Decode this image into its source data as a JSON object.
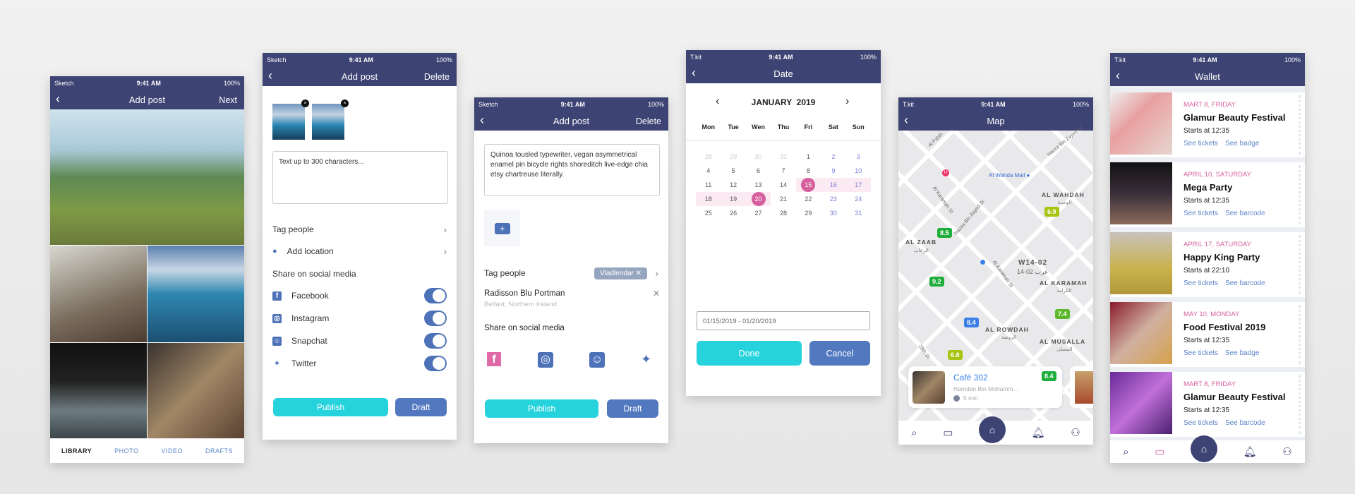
{
  "status": {
    "sketch": "Sketch",
    "tkit": "T.kit",
    "time": "9:41 AM",
    "battery": "100%"
  },
  "screen1": {
    "title": "Add post",
    "next": "Next",
    "tabs": [
      "LIBRARY",
      "PHOTO",
      "VIDEO",
      "DRAFTS"
    ],
    "active_tab": "LIBRARY"
  },
  "screen2": {
    "title": "Add post",
    "delete": "Delete",
    "placeholder": "Text up to 300 characters...",
    "tag_people": "Tag people",
    "add_location": "Add location",
    "share": "Share on social media",
    "social": [
      {
        "name": "Facebook",
        "icon": "facebook-icon",
        "on": true
      },
      {
        "name": "Instagram",
        "icon": "instagram-icon",
        "on": true
      },
      {
        "name": "Snapchat",
        "icon": "snapchat-icon",
        "on": true
      },
      {
        "name": "Twitter",
        "icon": "twitter-icon",
        "on": true
      }
    ],
    "publish": "Publish",
    "draft": "Draft"
  },
  "screen3": {
    "title": "Add post",
    "delete": "Delete",
    "text": "Quinoa tousled typewriter, vegan asymmetrical enamel pin bicycle rights shoreditch live-edge chia etsy chartreuse literally.",
    "tag_people": "Tag people",
    "tag": "Vladlendar",
    "location_name": "Radisson Blu Portman",
    "location_sub": "Belfast, Northern Ireland",
    "share": "Share on social media",
    "publish": "Publish",
    "draft": "Draft"
  },
  "screen4": {
    "title": "Date",
    "month": "JANUARY  2019",
    "weekdays": [
      "Mon",
      "Tue",
      "Wen",
      "Thu",
      "Fri",
      "Sat",
      "Sun"
    ],
    "days": [
      "28",
      "29",
      "30",
      "31",
      "1",
      "2",
      "3",
      "4",
      "5",
      "6",
      "7",
      "8",
      "9",
      "10",
      "11",
      "12",
      "13",
      "14",
      "15",
      "16",
      "17",
      "18",
      "19",
      "20",
      "21",
      "22",
      "23",
      "24",
      "25",
      "26",
      "27",
      "28",
      "29",
      "30",
      "31"
    ],
    "range_start": "15",
    "range_end": "20",
    "range": "01/15/2019 - 01/20/2019",
    "done": "Done",
    "cancel": "Cancel"
  },
  "screen5": {
    "title": "Map",
    "streets": [
      "Al Falah",
      "Hazza Bin Zayed St",
      "Al Karamah St",
      "Hazza Bin Zayed St",
      "Al Karamah St",
      "28th St"
    ],
    "poi": "Al Wahda Mall",
    "areas": [
      {
        "en": "AL WAHDAH",
        "ar": "الوحدة"
      },
      {
        "en": "AL ZAAB",
        "ar": "الزعاب"
      },
      {
        "en": "W14-02",
        "ar": "غرب 02-14"
      },
      {
        "en": "AL KARAMAH",
        "ar": "الكرامة"
      },
      {
        "en": "AL ROWDAH",
        "ar": "الروضة"
      },
      {
        "en": "AL MUSALLA",
        "ar": "المصلى"
      }
    ],
    "pins": [
      {
        "v": "6.9",
        "color": "#a8c412"
      },
      {
        "v": "8.5",
        "color": "#1fae3c"
      },
      {
        "v": "9.2",
        "color": "#1fae3c"
      },
      {
        "v": "7.4",
        "color": "#5cb82a"
      },
      {
        "v": "8.4",
        "color": "#3a7ee8"
      },
      {
        "v": "6.8",
        "color": "#a8c412"
      }
    ],
    "card": {
      "name": "Café 302",
      "address": "Hamdan Bin Mohamm...",
      "time": "5 min",
      "rating": "8.4"
    }
  },
  "screen6": {
    "title": "Wallet",
    "events": [
      {
        "date": "MART 8, FRIDAY",
        "name": "Glamur Beauty Festival",
        "starts": "Starts at 12:35",
        "l1": "See tickets",
        "l2": "See badge"
      },
      {
        "date": "APRIL 10, SATURDAY",
        "name": "Mega Party",
        "starts": "Starts at 12:35",
        "l1": "See tickets",
        "l2": "See barcode"
      },
      {
        "date": "APRIL 17, SATURDAY",
        "name": "Happy King Party",
        "starts": "Starts at 22:10",
        "l1": "See tickets",
        "l2": "See barcode"
      },
      {
        "date": "MAY 10, MONDAY",
        "name": "Food Festival 2019",
        "starts": "Starts at 12:35",
        "l1": "See tickets",
        "l2": "See badge"
      },
      {
        "date": "MART 8, FRIDAY",
        "name": "Glamur Beauty Festival",
        "starts": "Starts at 12:35",
        "l1": "See tickets",
        "l2": "See barcode"
      }
    ]
  },
  "colors": {
    "header": "#3d4373",
    "accent": "#26d3dd",
    "secondary": "#5278bf",
    "pink": "#d6609e"
  }
}
